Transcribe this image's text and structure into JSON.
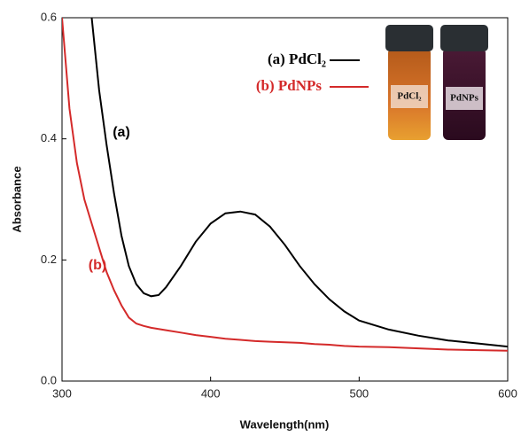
{
  "chart_data": {
    "type": "line",
    "x_label": "Wavelength(nm)",
    "y_label": "Absorbance",
    "x": [
      300,
      305,
      310,
      315,
      320,
      325,
      330,
      335,
      340,
      345,
      350,
      355,
      360,
      365,
      370,
      380,
      390,
      400,
      410,
      420,
      430,
      440,
      450,
      460,
      470,
      480,
      490,
      500,
      520,
      540,
      560,
      580,
      600
    ],
    "series": [
      {
        "name": "(a) PdCl₂",
        "color": "#000000",
        "label": "(a)",
        "values": [
          null,
          null,
          null,
          null,
          0.6,
          0.48,
          0.39,
          0.31,
          0.24,
          0.19,
          0.16,
          0.145,
          0.14,
          0.142,
          0.155,
          0.19,
          0.23,
          0.26,
          0.277,
          0.28,
          0.275,
          0.255,
          0.225,
          0.19,
          0.16,
          0.135,
          0.115,
          0.1,
          0.085,
          0.075,
          0.067,
          0.062,
          0.057
        ]
      },
      {
        "name": "(b) PdNPs",
        "color": "#d42a2a",
        "label": "(b)",
        "values": [
          0.6,
          0.45,
          0.36,
          0.3,
          0.26,
          0.22,
          0.18,
          0.15,
          0.125,
          0.105,
          0.095,
          0.091,
          0.088,
          0.086,
          0.084,
          0.08,
          0.076,
          0.073,
          0.07,
          0.068,
          0.066,
          0.065,
          0.064,
          0.063,
          0.061,
          0.06,
          0.058,
          0.057,
          0.056,
          0.054,
          0.052,
          0.051,
          0.05
        ]
      }
    ],
    "xlim": [
      300,
      600
    ],
    "xticks": [
      300,
      400,
      500,
      600
    ],
    "ylim": [
      0,
      0.6
    ],
    "yticks": [
      {
        "value": 0,
        "label": "0.0"
      },
      0.2,
      0.4,
      0.6
    ],
    "grid": false,
    "legend": "top",
    "inset": {
      "labels": [
        "PdCl₂",
        "PdNPs"
      ]
    }
  }
}
